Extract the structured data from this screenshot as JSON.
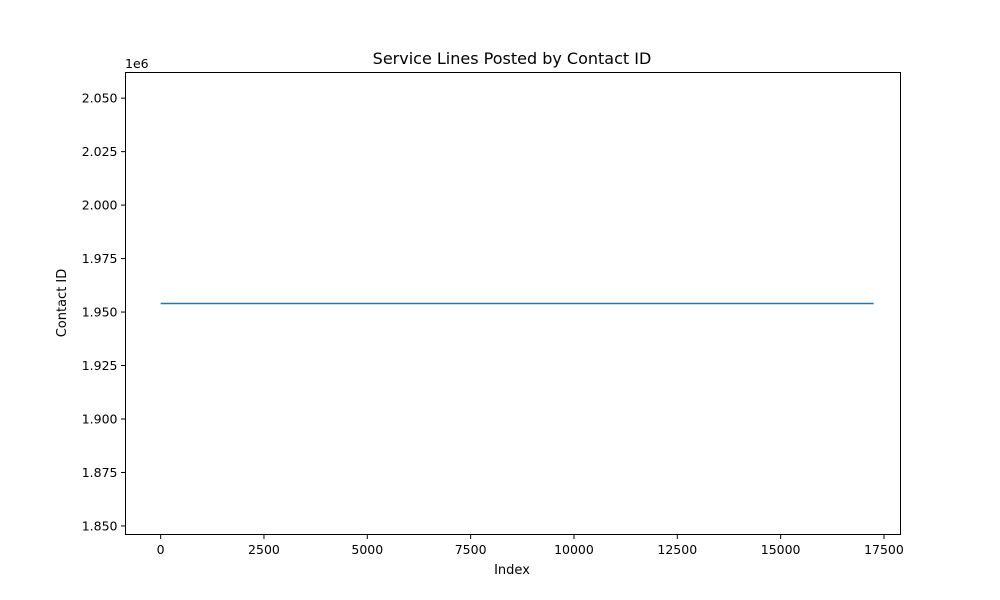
{
  "chart_data": {
    "type": "line",
    "title": "Service Lines Posted by Contact ID",
    "xlabel": "Index",
    "ylabel": "Contact ID",
    "y_offset_label": "1e6",
    "xlim": [
      -850,
      17900
    ],
    "ylim": [
      1846000,
      2062000
    ],
    "x_ticks": [
      0,
      2500,
      5000,
      7500,
      10000,
      12500,
      15000,
      17500
    ],
    "x_tick_labels": [
      "0",
      "2500",
      "5000",
      "7500",
      "10000",
      "12500",
      "15000",
      "17500"
    ],
    "y_ticks": [
      1850000,
      1875000,
      1900000,
      1925000,
      1950000,
      1975000,
      2000000,
      2025000,
      2050000
    ],
    "y_tick_labels": [
      "1.850",
      "1.875",
      "1.900",
      "1.925",
      "1.950",
      "1.975",
      "2.000",
      "2.025",
      "2.050"
    ],
    "grid": false,
    "series": [
      {
        "color": "#1f77b4",
        "x": [
          0,
          17250
        ],
        "y": [
          1954000,
          1954000
        ]
      }
    ]
  }
}
